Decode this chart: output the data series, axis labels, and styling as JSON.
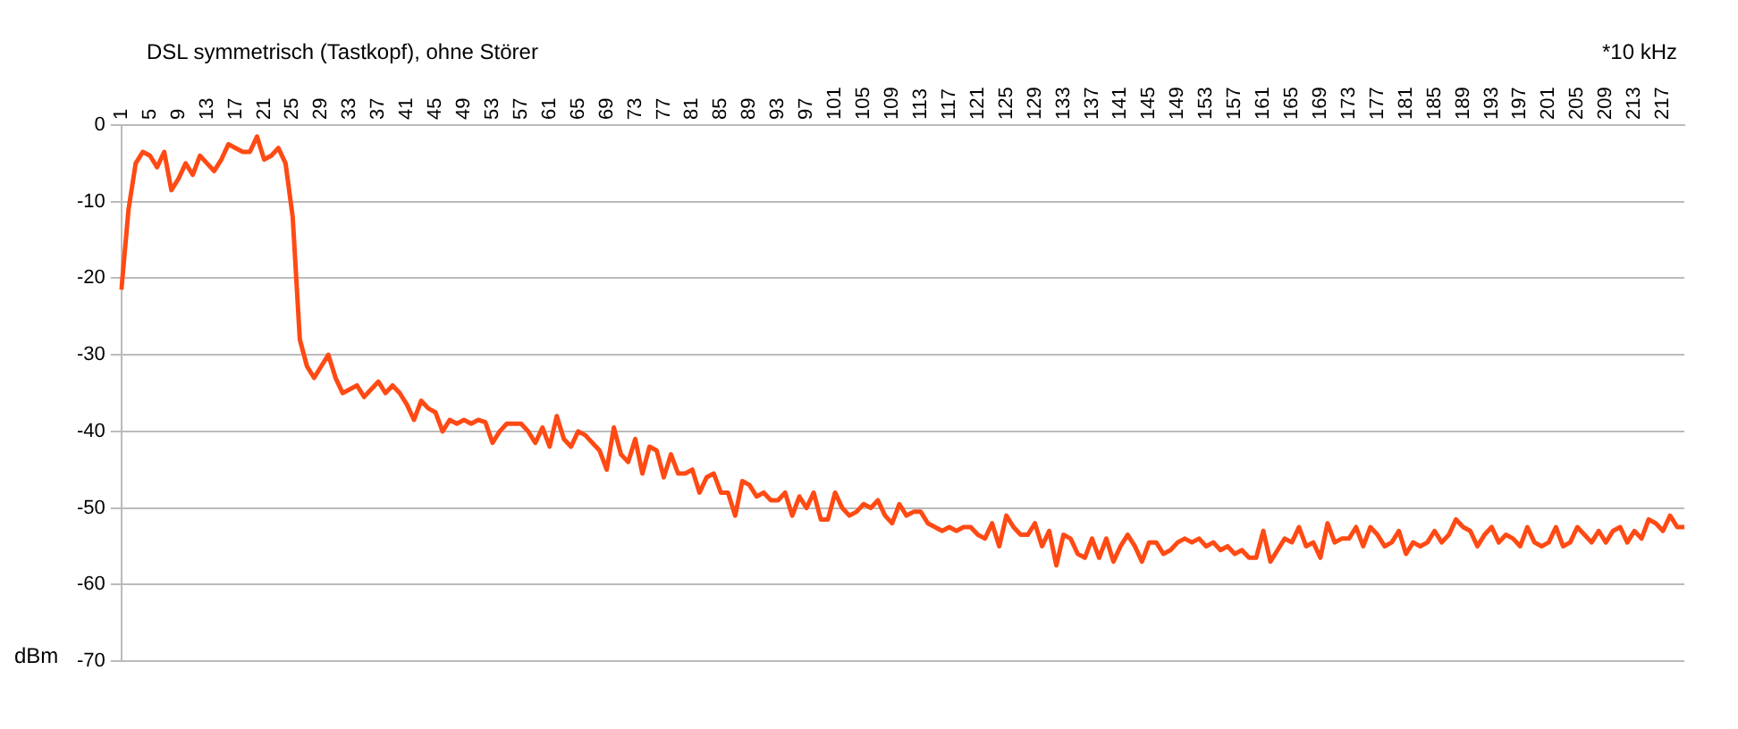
{
  "chart_data": {
    "type": "line",
    "title": "DSL symmetrisch (Tastkopf), ohne Störer",
    "xlabel": "*10 kHz",
    "ylabel": "dBm",
    "categories": [
      "1",
      null,
      null,
      null,
      "5",
      null,
      null,
      null,
      "9",
      null,
      null,
      null,
      "13",
      null,
      null,
      null,
      "17",
      null,
      null,
      null,
      "21",
      null,
      null,
      null,
      "25",
      null,
      null,
      null,
      "29",
      null,
      null,
      null,
      "33",
      null,
      null,
      null,
      "37",
      null,
      null,
      null,
      "41",
      null,
      null,
      null,
      "45",
      null,
      null,
      null,
      "49",
      null,
      null,
      null,
      "53",
      null,
      null,
      null,
      "57",
      null,
      null,
      null,
      "61",
      null,
      null,
      null,
      "65",
      null,
      null,
      null,
      "69",
      null,
      null,
      null,
      "73",
      null,
      null,
      null,
      "77",
      null,
      null,
      null,
      "81",
      null,
      null,
      null,
      "85",
      null,
      null,
      null,
      "89",
      null,
      null,
      null,
      "93",
      null,
      null,
      null,
      "97",
      null,
      null,
      null,
      "101",
      null,
      null,
      null,
      "105",
      null,
      null,
      null,
      "109",
      null,
      null,
      null,
      "113",
      null,
      null,
      null,
      "117",
      null,
      null,
      null,
      "121",
      null,
      null,
      null,
      "125",
      null,
      null,
      null,
      "129",
      null,
      null,
      null,
      "133",
      null,
      null,
      null,
      "137",
      null,
      null,
      null,
      "141",
      null,
      null,
      null,
      "145",
      null,
      null,
      null,
      "149",
      null,
      null,
      null,
      "153",
      null,
      null,
      null,
      "157",
      null,
      null,
      null,
      "161",
      null,
      null,
      null,
      "165",
      null,
      null,
      null,
      "169",
      null,
      null,
      null,
      "173",
      null,
      null,
      null,
      "177",
      null,
      null,
      null,
      "181",
      null,
      null,
      null,
      "185",
      null,
      null,
      null,
      "189",
      null,
      null,
      null,
      "193",
      null,
      null,
      null,
      "197",
      null,
      null,
      null,
      "201",
      null,
      null,
      null,
      "205",
      null,
      null,
      null,
      "209",
      null,
      null,
      null,
      "213",
      null,
      null,
      null,
      "217",
      null,
      null,
      null
    ],
    "series": [
      {
        "color": "#ff4a14",
        "values": [
          -21.5,
          -11,
          -5,
          -3.5,
          -4,
          -5.5,
          -3.5,
          -8.5,
          -7,
          -5,
          -6.5,
          -4,
          -5,
          -6,
          -4.5,
          -2.5,
          -3,
          -3.5,
          -3.5,
          -1.5,
          -4.5,
          -4,
          -3,
          -5,
          -12,
          -28,
          -31.5,
          -33,
          -31.5,
          -30,
          -33,
          -35,
          -34.5,
          -34,
          -35.5,
          -34.5,
          -33.5,
          -35,
          -34,
          -35,
          -36.5,
          -38.5,
          -36,
          -37,
          -37.5,
          -40,
          -38.5,
          -39,
          -38.5,
          -39,
          -38.5,
          -38.8,
          -41.5,
          -40,
          -39,
          -39,
          -39,
          -40,
          -41.5,
          -39.5,
          -42,
          -38,
          -41,
          -42,
          -40,
          -40.5,
          -41.5,
          -42.5,
          -45,
          -39.5,
          -43,
          -44,
          -41,
          -45.5,
          -42,
          -42.5,
          -46,
          -43,
          -45.5,
          -45.5,
          -45,
          -48,
          -46,
          -45.5,
          -48,
          -48,
          -51,
          -46.5,
          -47,
          -48.5,
          -48,
          -49,
          -49,
          -48,
          -51,
          -48.5,
          -50,
          -48,
          -51.5,
          -51.5,
          -48,
          -50,
          -51,
          -50.5,
          -49.5,
          -50,
          -49,
          -51,
          -52,
          -49.5,
          -51,
          -50.5,
          -50.5,
          -52,
          -52.5,
          -53,
          -52.5,
          -53,
          -52.5,
          -52.5,
          -53.5,
          -54,
          -52,
          -55,
          -51,
          -52.5,
          -53.5,
          -53.5,
          -52,
          -55,
          -53,
          -57.5,
          -53.5,
          -54,
          -56,
          -56.5,
          -54,
          -56.5,
          -54,
          -57,
          -55,
          -53.5,
          -55,
          -57,
          -54.5,
          -54.5,
          -56,
          -55.5,
          -54.5,
          -54,
          -54.5,
          -54,
          -55,
          -54.5,
          -55.5,
          -55,
          -56,
          -55.5,
          -56.5,
          -56.5,
          -53,
          -57,
          -55.5,
          -54,
          -54.5,
          -52.5,
          -55,
          -54.5,
          -56.5,
          -52,
          -54.5,
          -54,
          -54,
          -52.5,
          -55,
          -52.5,
          -53.5,
          -55,
          -54.5,
          -53,
          -56,
          -54.5,
          -55,
          -54.5,
          -53,
          -54.5,
          -53.5,
          -51.5,
          -52.5,
          -53,
          -55,
          -53.5,
          -52.5,
          -54.5,
          -53.5,
          -54,
          -55,
          -52.5,
          -54.5,
          -55,
          -54.5,
          -52.5,
          -55,
          -54.5,
          -52.5,
          -53.5,
          -54.5,
          -53,
          -54.5,
          -53,
          -52.5,
          -54.5,
          -53,
          -54,
          -51.5,
          -52,
          -53,
          -51,
          -52.5,
          -52.5
        ]
      }
    ],
    "ylim": [
      -70,
      0
    ],
    "yticks": [
      -70,
      -60,
      -50,
      -40,
      -30,
      -20,
      -10,
      0
    ],
    "grid": "y",
    "legend": false,
    "marker": "none",
    "line_style": "solid"
  }
}
